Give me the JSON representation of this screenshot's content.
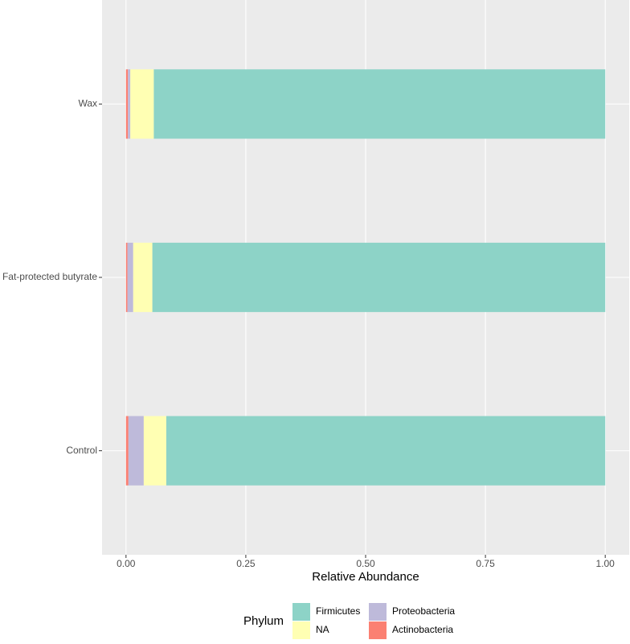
{
  "chart_data": {
    "type": "stacked-barh",
    "categories": [
      "Control",
      "Fat-protected butyrate",
      "Wax"
    ],
    "series": [
      {
        "name": "Actinobacteria",
        "color": "#FB8072",
        "values": [
          0.005,
          0.003,
          0.004
        ]
      },
      {
        "name": "Proteobacteria",
        "color": "#BEBADA",
        "values": [
          0.032,
          0.012,
          0.005
        ]
      },
      {
        "name": "NA",
        "color": "#FFFFB3",
        "values": [
          0.047,
          0.04,
          0.049
        ]
      },
      {
        "name": "Firmicutes",
        "color": "#8DD3C7",
        "values": [
          0.916,
          0.945,
          0.942
        ]
      }
    ],
    "xlabel": "Relative Abundance",
    "legend_title": "Phylum",
    "xlim": [
      -0.05,
      1.05
    ],
    "xticks": [
      {
        "value": 0,
        "label": "0.00"
      },
      {
        "value": 0.25,
        "label": "0.25"
      },
      {
        "value": 0.5,
        "label": "0.50"
      },
      {
        "value": 0.75,
        "label": "0.75"
      },
      {
        "value": 1,
        "label": "1.00"
      }
    ],
    "grid": true,
    "legend": "bottom"
  }
}
